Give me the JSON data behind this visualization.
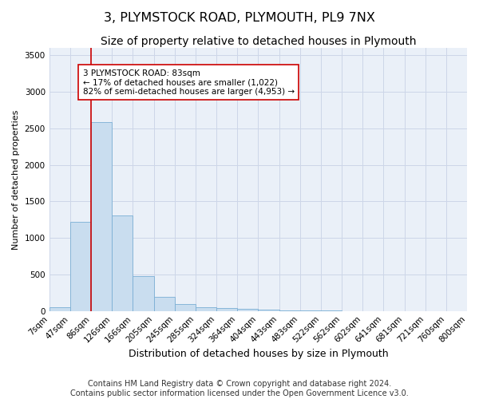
{
  "title": "3, PLYMSTOCK ROAD, PLYMOUTH, PL9 7NX",
  "subtitle": "Size of property relative to detached houses in Plymouth",
  "xlabel": "Distribution of detached houses by size in Plymouth",
  "ylabel": "Number of detached properties",
  "footer_line1": "Contains HM Land Registry data © Crown copyright and database right 2024.",
  "footer_line2": "Contains public sector information licensed under the Open Government Licence v3.0.",
  "bin_labels": [
    "7sqm",
    "47sqm",
    "86sqm",
    "126sqm",
    "166sqm",
    "205sqm",
    "245sqm",
    "285sqm",
    "324sqm",
    "364sqm",
    "404sqm",
    "443sqm",
    "483sqm",
    "522sqm",
    "562sqm",
    "602sqm",
    "641sqm",
    "681sqm",
    "721sqm",
    "760sqm",
    "800sqm"
  ],
  "bar_values": [
    55,
    1220,
    2590,
    1310,
    480,
    195,
    100,
    55,
    45,
    30,
    20,
    10,
    5,
    3,
    2,
    2,
    1,
    1,
    0,
    0
  ],
  "bar_color": "#c9ddef",
  "bar_edge_color": "#7aaed4",
  "grid_color": "#cdd6e8",
  "background_color": "#eaf0f8",
  "red_line_x": 2.0,
  "red_line_color": "#cc0000",
  "annotation_text": "3 PLYMSTOCK ROAD: 83sqm\n← 17% of detached houses are smaller (1,022)\n82% of semi-detached houses are larger (4,953) →",
  "ylim": [
    0,
    3600
  ],
  "yticks": [
    0,
    500,
    1000,
    1500,
    2000,
    2500,
    3000,
    3500
  ],
  "title_fontsize": 11.5,
  "subtitle_fontsize": 10,
  "xlabel_fontsize": 9,
  "ylabel_fontsize": 8,
  "tick_fontsize": 7.5,
  "footer_fontsize": 7,
  "ann_fontsize": 7.5
}
